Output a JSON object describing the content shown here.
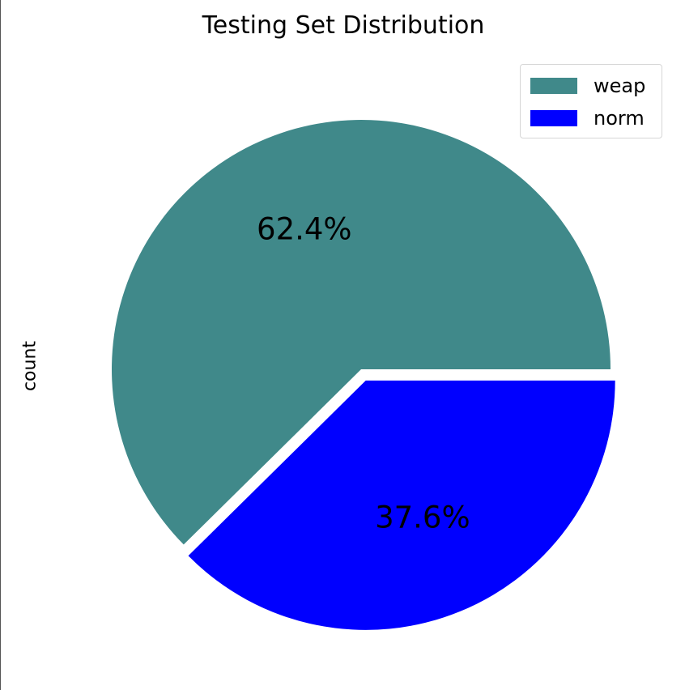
{
  "chart_data": {
    "type": "pie",
    "title": "Testing Set Distribution",
    "ylabel": "count",
    "xlabel": "",
    "slices": [
      {
        "label": "weap",
        "value": 62.4,
        "display": "62.4%",
        "color": "#40898a",
        "explode": false
      },
      {
        "label": "norm",
        "value": 37.6,
        "display": "37.6%",
        "color": "#0000ff",
        "explode": true
      }
    ],
    "start_angle_deg": 0,
    "direction": "counterclockwise",
    "legend_position": "top-right"
  }
}
